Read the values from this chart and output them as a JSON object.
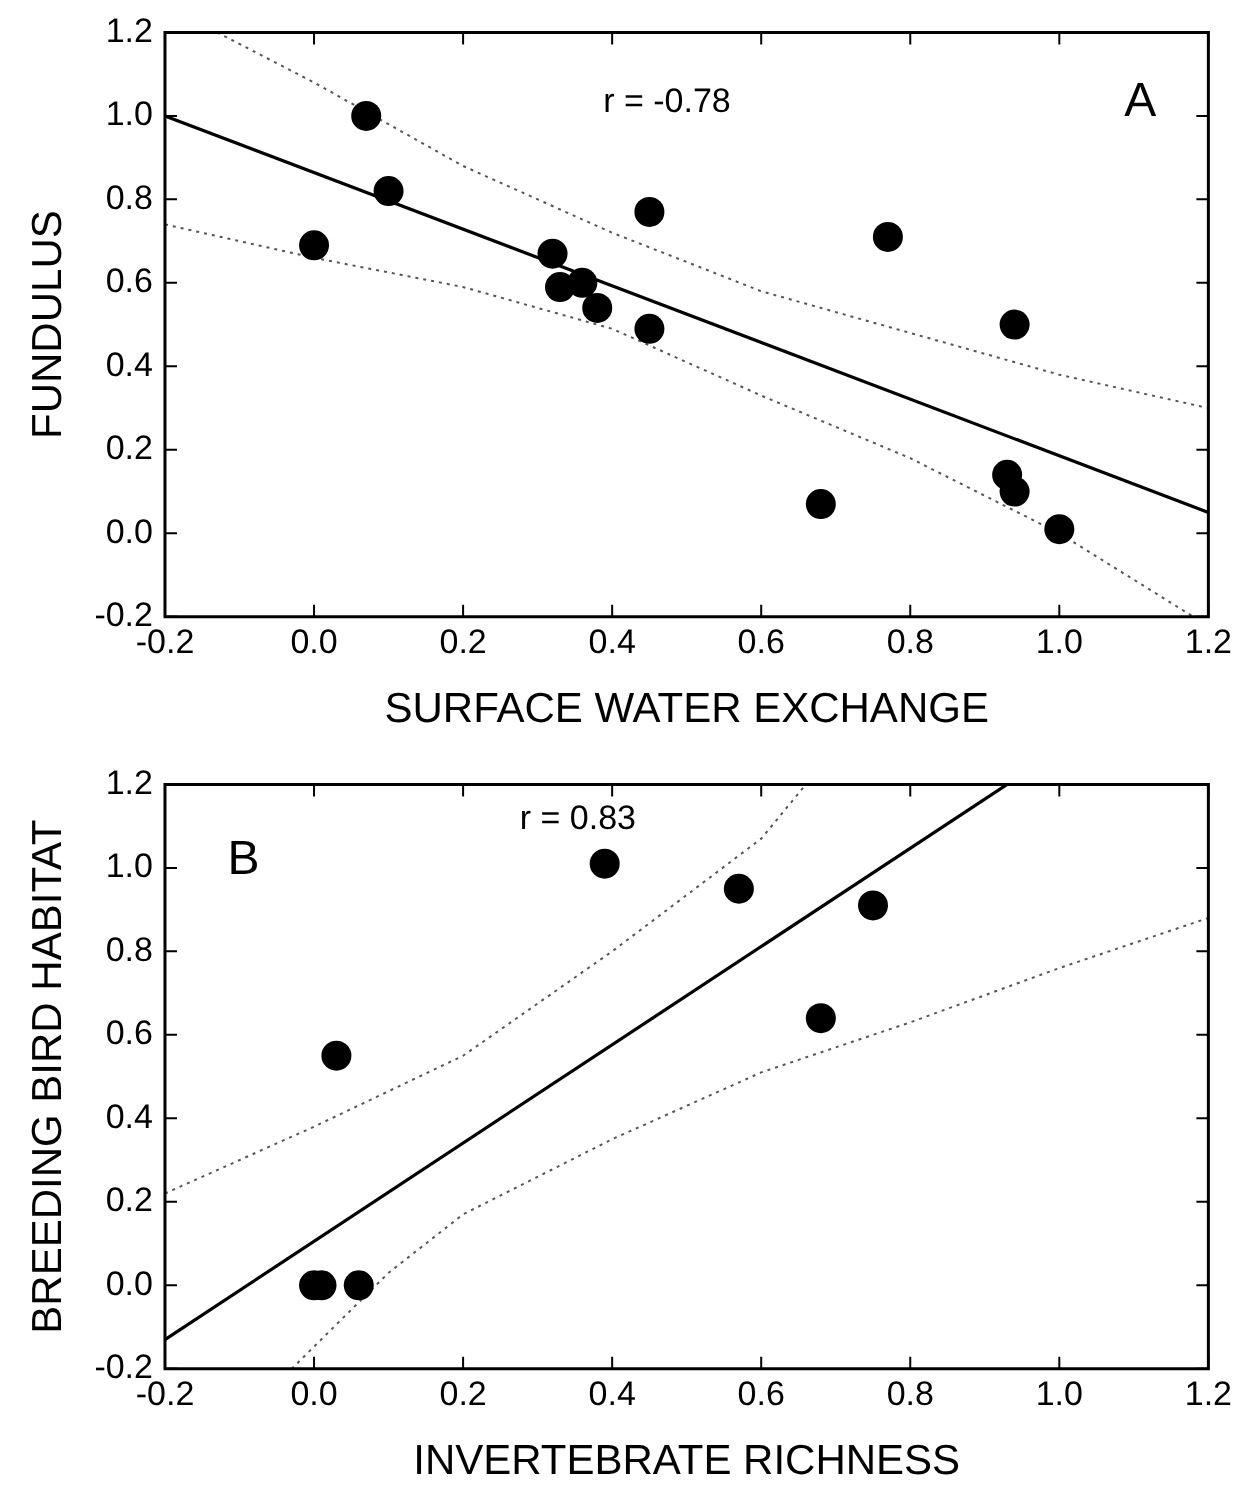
{
  "chart_data": [
    {
      "type": "scatter",
      "xlabel": "SURFACE WATER EXCHANGE",
      "ylabel": "FUNDULUS",
      "annotations": [
        "r = -0.78",
        "A"
      ],
      "xlim": [
        -0.2,
        1.2
      ],
      "ylim": [
        -0.2,
        1.2
      ],
      "xticks": [
        {
          "value": -0.2,
          "label": "-0.2"
        },
        {
          "value": 0,
          "label": "0.0"
        },
        {
          "value": 0.2,
          "label": "0.2"
        },
        {
          "value": 0.4,
          "label": "0.4"
        },
        {
          "value": 0.6,
          "label": "0.6"
        },
        {
          "value": 0.8,
          "label": "0.8"
        },
        {
          "value": 1,
          "label": "1.0"
        },
        {
          "value": 1.2,
          "label": "1.2"
        }
      ],
      "yticks": [
        {
          "value": -0.2,
          "label": "-0.2"
        },
        {
          "value": 0,
          "label": "0.0"
        },
        {
          "value": 0.2,
          "label": "0.2"
        },
        {
          "value": 0.4,
          "label": "0.4"
        },
        {
          "value": 0.6,
          "label": "0.6"
        },
        {
          "value": 0.8,
          "label": "0.8"
        },
        {
          "value": 1,
          "label": "1.0"
        },
        {
          "value": 1.2,
          "label": "1.2"
        }
      ],
      "grid": false,
      "legend": false,
      "series": [
        {
          "type": "scatter",
          "color": "#000000",
          "marker": "circle",
          "x": [
            0.0,
            0.07,
            0.1,
            0.32,
            0.33,
            0.36,
            0.38,
            0.45,
            0.45,
            0.68,
            0.77,
            0.93,
            0.94,
            0.94,
            1.0
          ],
          "values": [
            0.69,
            1.0,
            0.82,
            0.67,
            0.59,
            0.6,
            0.54,
            0.77,
            0.49,
            0.07,
            0.71,
            0.14,
            0.1,
            0.5,
            0.01
          ]
        },
        {
          "type": "line",
          "color": "#000000",
          "marker": "none",
          "line_style": "solid",
          "x": [
            -0.2,
            1.2
          ],
          "values": [
            1.0,
            0.05
          ]
        },
        {
          "type": "line",
          "color": "#555555",
          "marker": "none",
          "line_style": "dotted",
          "x": [
            -0.13,
            0.0,
            0.2,
            0.4,
            0.6,
            0.8,
            1.0,
            1.2
          ],
          "values": [
            1.2,
            1.08,
            0.88,
            0.72,
            0.58,
            0.48,
            0.38,
            0.3
          ]
        },
        {
          "type": "line",
          "color": "#555555",
          "marker": "none",
          "line_style": "dotted",
          "x": [
            -0.2,
            0.0,
            0.2,
            0.4,
            0.6,
            0.8,
            1.0,
            1.18
          ],
          "values": [
            0.74,
            0.66,
            0.59,
            0.49,
            0.33,
            0.18,
            0.0,
            -0.2
          ]
        }
      ]
    },
    {
      "type": "scatter",
      "xlabel": "INVERTEBRATE RICHNESS",
      "ylabel": "BREEDING BIRD HABITAT",
      "annotations": [
        "r = 0.83",
        "B"
      ],
      "xlim": [
        -0.2,
        1.2
      ],
      "ylim": [
        -0.2,
        1.2
      ],
      "xticks": [
        {
          "value": -0.2,
          "label": "-0.2"
        },
        {
          "value": 0,
          "label": "0.0"
        },
        {
          "value": 0.2,
          "label": "0.2"
        },
        {
          "value": 0.4,
          "label": "0.4"
        },
        {
          "value": 0.6,
          "label": "0.6"
        },
        {
          "value": 0.8,
          "label": "0.8"
        },
        {
          "value": 1,
          "label": "1.0"
        },
        {
          "value": 1.2,
          "label": "1.2"
        }
      ],
      "yticks": [
        {
          "value": -0.2,
          "label": "-0.2"
        },
        {
          "value": 0,
          "label": "0.0"
        },
        {
          "value": 0.2,
          "label": "0.2"
        },
        {
          "value": 0.4,
          "label": "0.4"
        },
        {
          "value": 0.6,
          "label": "0.6"
        },
        {
          "value": 0.8,
          "label": "0.8"
        },
        {
          "value": 1,
          "label": "1.0"
        },
        {
          "value": 1.2,
          "label": "1.2"
        }
      ],
      "grid": false,
      "legend": false,
      "series": [
        {
          "type": "scatter",
          "color": "#000000",
          "marker": "circle",
          "x": [
            0.0,
            0.01,
            0.06,
            0.03,
            0.39,
            0.57,
            0.68,
            0.75
          ],
          "values": [
            0.0,
            0.0,
            0.0,
            0.55,
            1.01,
            0.95,
            0.64,
            0.91
          ]
        },
        {
          "type": "line",
          "color": "#000000",
          "marker": "none",
          "line_style": "solid",
          "x": [
            -0.2,
            0.93
          ],
          "values": [
            -0.13,
            1.2
          ]
        },
        {
          "type": "line",
          "color": "#555555",
          "marker": "none",
          "line_style": "dotted",
          "x": [
            -0.2,
            0.0,
            0.2,
            0.4,
            0.6,
            0.66
          ],
          "values": [
            0.22,
            0.38,
            0.55,
            0.8,
            1.07,
            1.2
          ]
        },
        {
          "type": "line",
          "color": "#555555",
          "marker": "none",
          "line_style": "dotted",
          "x": [
            -0.03,
            0.1,
            0.2,
            0.4,
            0.6,
            0.8,
            1.0,
            1.2
          ],
          "values": [
            -0.2,
            0.03,
            0.17,
            0.35,
            0.51,
            0.63,
            0.76,
            0.88
          ]
        }
      ]
    }
  ]
}
